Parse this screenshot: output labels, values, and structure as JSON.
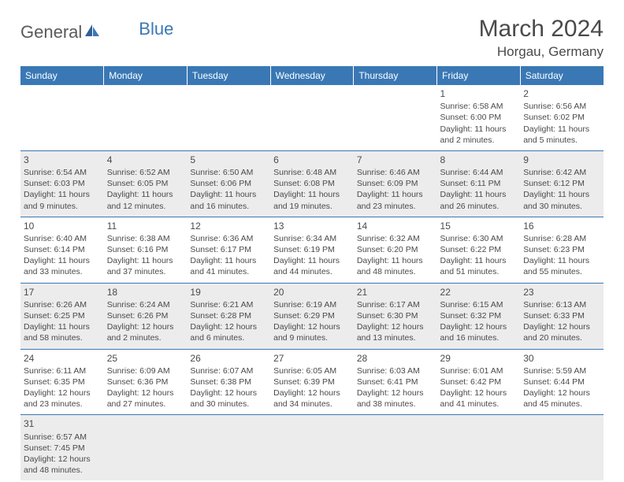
{
  "logo": {
    "text1": "General",
    "text2": "Blue"
  },
  "title": "March 2024",
  "location": "Horgau, Germany",
  "columns": [
    "Sunday",
    "Monday",
    "Tuesday",
    "Wednesday",
    "Thursday",
    "Friday",
    "Saturday"
  ],
  "header_bg": "#3a78b5",
  "header_fg": "#ffffff",
  "row_alt_bg": "#ececec",
  "rule_color": "#3a78b5",
  "weeks": [
    [
      null,
      null,
      null,
      null,
      null,
      {
        "n": "1",
        "sr": "6:58 AM",
        "ss": "6:00 PM",
        "dh": "11",
        "dm": "2"
      },
      {
        "n": "2",
        "sr": "6:56 AM",
        "ss": "6:02 PM",
        "dh": "11",
        "dm": "5"
      }
    ],
    [
      {
        "n": "3",
        "sr": "6:54 AM",
        "ss": "6:03 PM",
        "dh": "11",
        "dm": "9"
      },
      {
        "n": "4",
        "sr": "6:52 AM",
        "ss": "6:05 PM",
        "dh": "11",
        "dm": "12"
      },
      {
        "n": "5",
        "sr": "6:50 AM",
        "ss": "6:06 PM",
        "dh": "11",
        "dm": "16"
      },
      {
        "n": "6",
        "sr": "6:48 AM",
        "ss": "6:08 PM",
        "dh": "11",
        "dm": "19"
      },
      {
        "n": "7",
        "sr": "6:46 AM",
        "ss": "6:09 PM",
        "dh": "11",
        "dm": "23"
      },
      {
        "n": "8",
        "sr": "6:44 AM",
        "ss": "6:11 PM",
        "dh": "11",
        "dm": "26"
      },
      {
        "n": "9",
        "sr": "6:42 AM",
        "ss": "6:12 PM",
        "dh": "11",
        "dm": "30"
      }
    ],
    [
      {
        "n": "10",
        "sr": "6:40 AM",
        "ss": "6:14 PM",
        "dh": "11",
        "dm": "33"
      },
      {
        "n": "11",
        "sr": "6:38 AM",
        "ss": "6:16 PM",
        "dh": "11",
        "dm": "37"
      },
      {
        "n": "12",
        "sr": "6:36 AM",
        "ss": "6:17 PM",
        "dh": "11",
        "dm": "41"
      },
      {
        "n": "13",
        "sr": "6:34 AM",
        "ss": "6:19 PM",
        "dh": "11",
        "dm": "44"
      },
      {
        "n": "14",
        "sr": "6:32 AM",
        "ss": "6:20 PM",
        "dh": "11",
        "dm": "48"
      },
      {
        "n": "15",
        "sr": "6:30 AM",
        "ss": "6:22 PM",
        "dh": "11",
        "dm": "51"
      },
      {
        "n": "16",
        "sr": "6:28 AM",
        "ss": "6:23 PM",
        "dh": "11",
        "dm": "55"
      }
    ],
    [
      {
        "n": "17",
        "sr": "6:26 AM",
        "ss": "6:25 PM",
        "dh": "11",
        "dm": "58"
      },
      {
        "n": "18",
        "sr": "6:24 AM",
        "ss": "6:26 PM",
        "dh": "12",
        "dm": "2"
      },
      {
        "n": "19",
        "sr": "6:21 AM",
        "ss": "6:28 PM",
        "dh": "12",
        "dm": "6"
      },
      {
        "n": "20",
        "sr": "6:19 AM",
        "ss": "6:29 PM",
        "dh": "12",
        "dm": "9"
      },
      {
        "n": "21",
        "sr": "6:17 AM",
        "ss": "6:30 PM",
        "dh": "12",
        "dm": "13"
      },
      {
        "n": "22",
        "sr": "6:15 AM",
        "ss": "6:32 PM",
        "dh": "12",
        "dm": "16"
      },
      {
        "n": "23",
        "sr": "6:13 AM",
        "ss": "6:33 PM",
        "dh": "12",
        "dm": "20"
      }
    ],
    [
      {
        "n": "24",
        "sr": "6:11 AM",
        "ss": "6:35 PM",
        "dh": "12",
        "dm": "23"
      },
      {
        "n": "25",
        "sr": "6:09 AM",
        "ss": "6:36 PM",
        "dh": "12",
        "dm": "27"
      },
      {
        "n": "26",
        "sr": "6:07 AM",
        "ss": "6:38 PM",
        "dh": "12",
        "dm": "30"
      },
      {
        "n": "27",
        "sr": "6:05 AM",
        "ss": "6:39 PM",
        "dh": "12",
        "dm": "34"
      },
      {
        "n": "28",
        "sr": "6:03 AM",
        "ss": "6:41 PM",
        "dh": "12",
        "dm": "38"
      },
      {
        "n": "29",
        "sr": "6:01 AM",
        "ss": "6:42 PM",
        "dh": "12",
        "dm": "41"
      },
      {
        "n": "30",
        "sr": "5:59 AM",
        "ss": "6:44 PM",
        "dh": "12",
        "dm": "45"
      }
    ],
    [
      {
        "n": "31",
        "sr": "6:57 AM",
        "ss": "7:45 PM",
        "dh": "12",
        "dm": "48"
      },
      null,
      null,
      null,
      null,
      null,
      null
    ]
  ],
  "labels": {
    "sunrise": "Sunrise:",
    "sunset": "Sunset:",
    "daylight": "Daylight:",
    "hours": "hours",
    "and": "and",
    "minutes": "minutes."
  }
}
